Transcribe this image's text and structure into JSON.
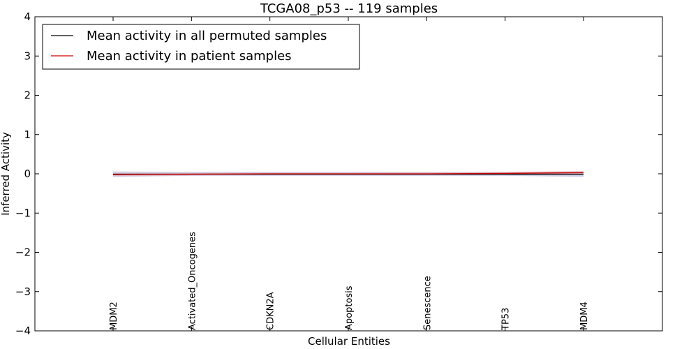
{
  "chart_data": {
    "type": "line",
    "title": "TCGA08_p53 -- 119 samples",
    "xlabel": "Cellular Entities",
    "ylabel": "Inferred Activity",
    "ylim": [
      -4,
      4
    ],
    "yticks": [
      4,
      3,
      2,
      1,
      0,
      -1,
      -2,
      -3,
      -4
    ],
    "ytick_labels": [
      "4",
      "3",
      "2",
      "1",
      "0",
      "−1",
      "−2",
      "−3",
      "−4"
    ],
    "grid": false,
    "legend_position": "top-left",
    "categories": [
      "MDM2",
      "Activated_Oncogenes",
      "CDKN2A",
      "Apoptosis",
      "Senescence",
      "TP53",
      "MDM4"
    ],
    "series": [
      {
        "name": "Mean activity in all permuted samples",
        "color": "#000000",
        "style": "solid",
        "values": [
          -0.01,
          -0.01,
          -0.01,
          -0.01,
          -0.01,
          -0.01,
          -0.01
        ]
      },
      {
        "name": "Mean activity in patient samples",
        "color": "#cc0000",
        "style": "solid",
        "values": [
          -0.02,
          -0.01,
          0.0,
          0.0,
          0.0,
          0.01,
          0.03
        ]
      }
    ],
    "bands": [
      {
        "color": "#9999cc",
        "lower": [
          -0.08,
          -0.05,
          -0.05,
          -0.05,
          -0.05,
          -0.05,
          -0.08
        ],
        "upper": [
          0.06,
          0.05,
          0.05,
          0.05,
          0.05,
          0.05,
          0.06
        ]
      },
      {
        "color": "#e8a0a0",
        "lower": [
          -0.06,
          -0.04,
          -0.03,
          -0.03,
          -0.03,
          -0.02,
          -0.01
        ],
        "upper": [
          0.02,
          0.02,
          0.03,
          0.03,
          0.04,
          0.05,
          0.07
        ]
      }
    ]
  }
}
